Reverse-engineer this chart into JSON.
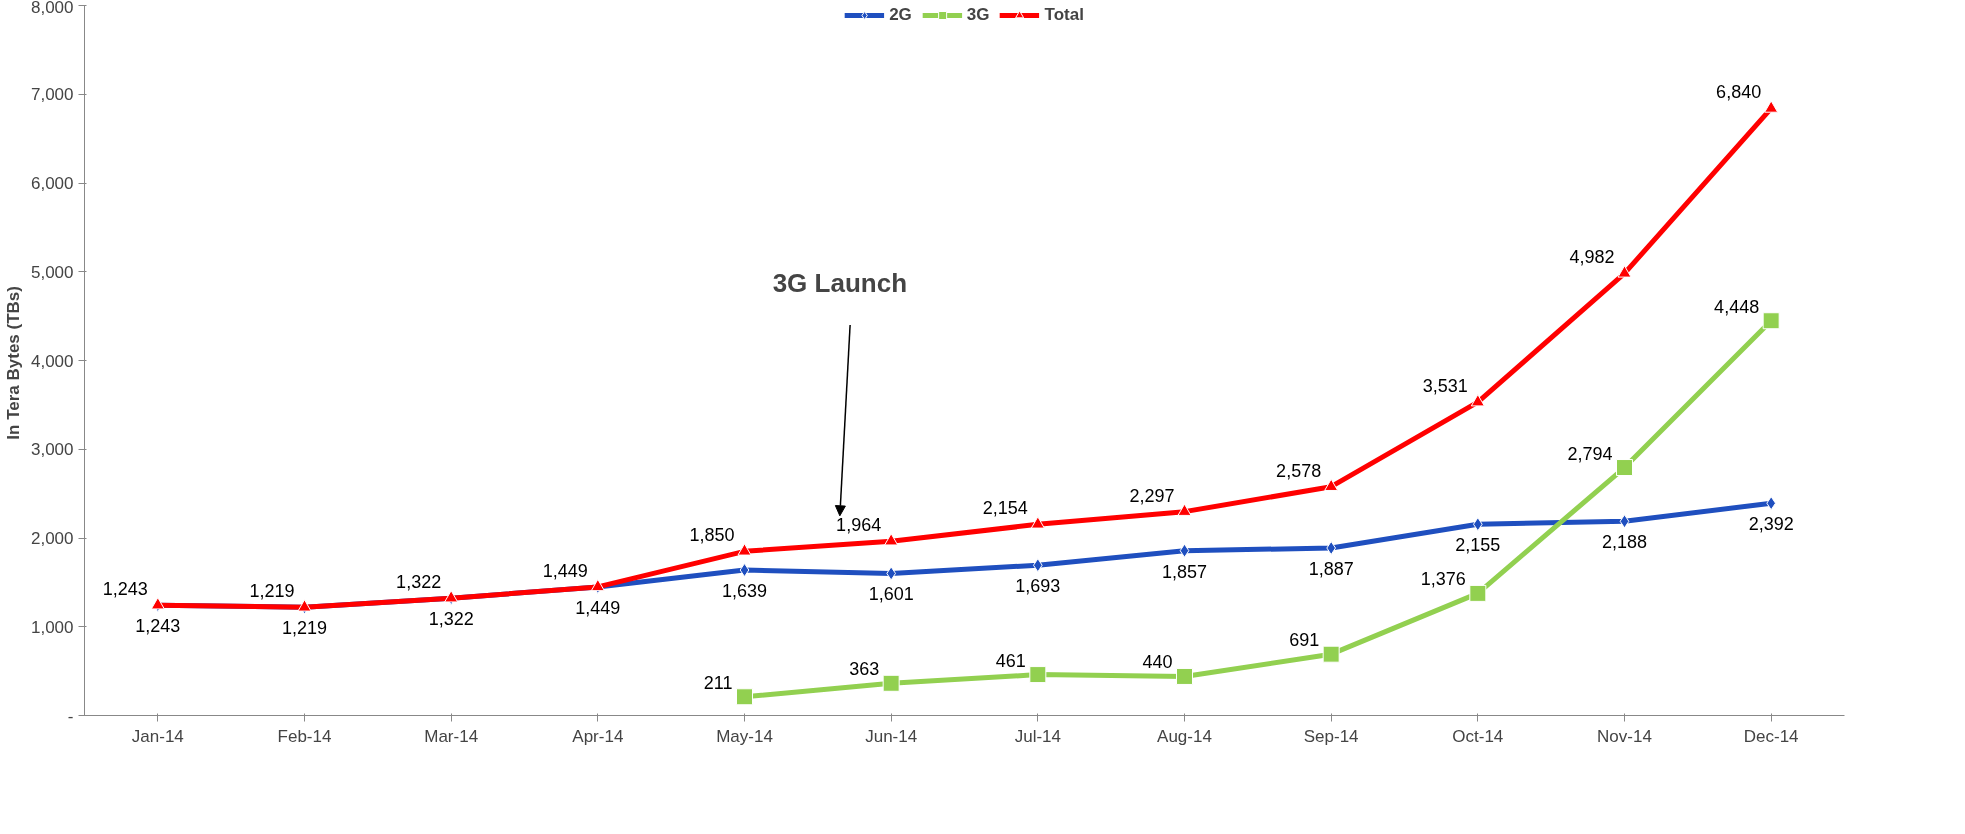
{
  "chart_data": {
    "type": "line",
    "ylabel": "In  Tera Bytes (TBs)",
    "categories": [
      "Jan-14",
      "Feb-14",
      "Mar-14",
      "Apr-14",
      "May-14",
      "Jun-14",
      "Jul-14",
      "Aug-14",
      "Sep-14",
      "Oct-14",
      "Nov-14",
      "Dec-14"
    ],
    "series": [
      {
        "name": "2G",
        "color": "#1f4fbf",
        "marker": "diamond",
        "values": [
          1243,
          1219,
          1322,
          1449,
          1639,
          1601,
          1693,
          1857,
          1887,
          2155,
          2188,
          2392
        ],
        "value_labels": [
          "1,243",
          "1,219",
          "1,322",
          "1,449",
          "1,639",
          "1,601",
          "1,693",
          "1,857",
          "1,887",
          "2,155",
          "2,188",
          "2,392"
        ]
      },
      {
        "name": "3G",
        "color": "#92d050",
        "marker": "square",
        "values": [
          null,
          null,
          null,
          null,
          211,
          363,
          461,
          440,
          691,
          1376,
          2794,
          4448
        ],
        "value_labels": [
          null,
          null,
          null,
          null,
          "211",
          "363",
          "461",
          "440",
          "691",
          "1,376",
          "2,794",
          "4,448"
        ]
      },
      {
        "name": "Total",
        "color": "#ff0000",
        "marker": "triangle",
        "values": [
          1243,
          1219,
          1322,
          1449,
          1850,
          1964,
          2154,
          2297,
          2578,
          3531,
          4982,
          6840
        ],
        "value_labels": [
          "1,243",
          "1,219",
          "1,322",
          "1,449",
          "1,850",
          "1,964",
          "2,154",
          "2,297",
          "2,578",
          "3,531",
          "4,982",
          "6,840"
        ]
      }
    ],
    "ylim": [
      0,
      8000
    ],
    "yticks": [
      {
        "value": 0,
        "label": "-"
      },
      {
        "value": 1000,
        "label": "1,000"
      },
      {
        "value": 2000,
        "label": "2,000"
      },
      {
        "value": 3000,
        "label": "3,000"
      },
      {
        "value": 4000,
        "label": "4,000"
      },
      {
        "value": 5000,
        "label": "5,000"
      },
      {
        "value": 6000,
        "label": "6,000"
      },
      {
        "value": 7000,
        "label": "7,000"
      },
      {
        "value": 8000,
        "label": "8,000"
      }
    ],
    "annotations": [
      "3G Launch"
    ],
    "legend": "top",
    "grid": false,
    "line_style": "solid"
  }
}
